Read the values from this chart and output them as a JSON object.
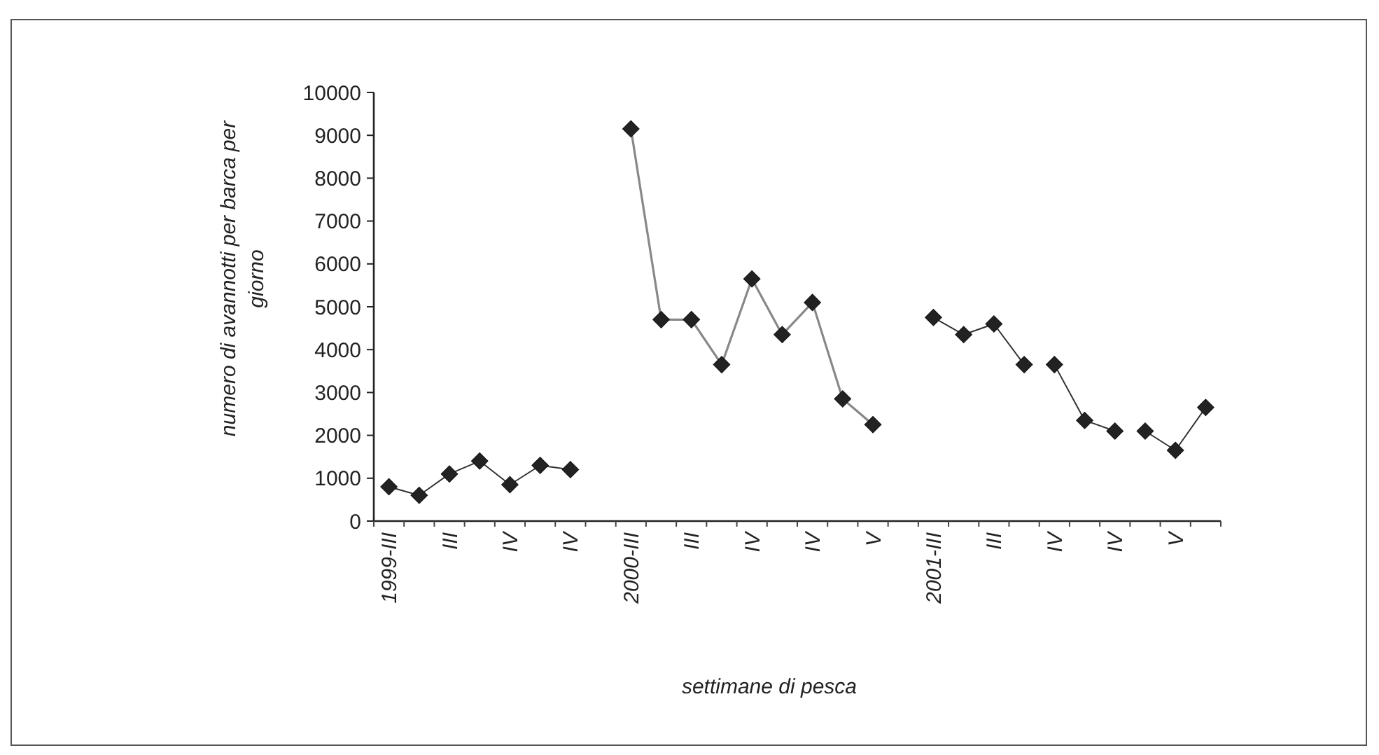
{
  "chart_data": {
    "type": "line",
    "xlabel": "settimane di pesca",
    "ylabel": "numero di avannotti per barca per giorno",
    "categories": [
      "1999-III",
      null,
      "III",
      null,
      "IV",
      null,
      "IV",
      null,
      "2000-III",
      null,
      "III",
      null,
      "IV",
      null,
      "IV",
      null,
      "V",
      null,
      "2001-III",
      null,
      "III",
      null,
      "IV",
      null,
      "IV",
      null,
      "V",
      null
    ],
    "series": [
      {
        "color": "#333333",
        "values": [
          800,
          600,
          1100,
          1400,
          850,
          1300,
          1200,
          null,
          null,
          null,
          null,
          null,
          null,
          null,
          null,
          null,
          null,
          null,
          null,
          null,
          null,
          null,
          null,
          null,
          null,
          null,
          null,
          null
        ]
      },
      {
        "color": "#888888",
        "values": [
          null,
          null,
          null,
          null,
          null,
          null,
          null,
          null,
          9150,
          4700,
          4700,
          3650,
          5650,
          4350,
          5100,
          2850,
          2250,
          null,
          null,
          null,
          null,
          null,
          null,
          null,
          null,
          null,
          null,
          null
        ]
      },
      {
        "color": "#333333",
        "values": [
          null,
          null,
          null,
          null,
          null,
          null,
          null,
          null,
          null,
          null,
          null,
          null,
          null,
          null,
          null,
          null,
          null,
          null,
          4750,
          4350,
          4600,
          3650,
          null,
          null,
          null,
          null,
          null,
          null
        ]
      },
      {
        "color": "#333333",
        "values": [
          null,
          null,
          null,
          null,
          null,
          null,
          null,
          null,
          null,
          null,
          null,
          null,
          null,
          null,
          null,
          null,
          null,
          null,
          null,
          null,
          null,
          null,
          3650,
          2350,
          2100,
          null,
          null,
          null
        ]
      },
      {
        "color": "#333333",
        "values": [
          null,
          null,
          null,
          null,
          null,
          null,
          null,
          null,
          null,
          null,
          null,
          null,
          null,
          null,
          null,
          null,
          null,
          null,
          null,
          null,
          null,
          null,
          null,
          null,
          null,
          2100,
          1650,
          2650
        ]
      }
    ],
    "ylim": [
      0,
      10000
    ],
    "yticks": [
      0,
      1000,
      2000,
      3000,
      4000,
      5000,
      6000,
      7000,
      8000,
      9000,
      10000
    ],
    "grid": false,
    "marker": "diamond",
    "line_style": "solid"
  }
}
